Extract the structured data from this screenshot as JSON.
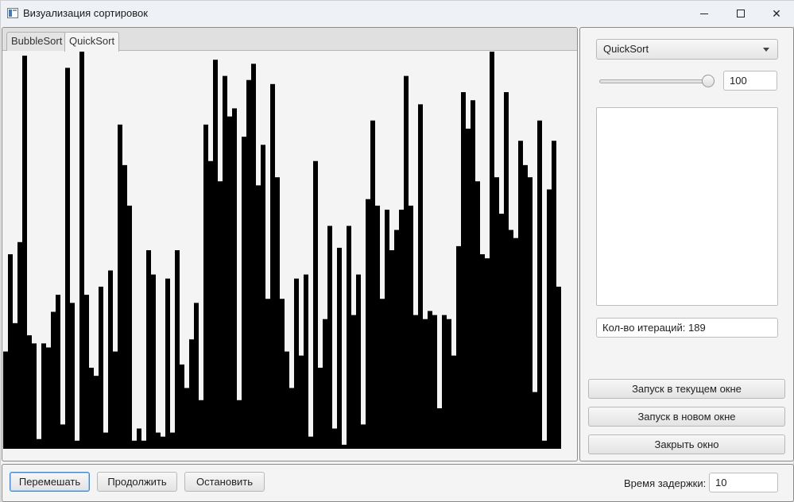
{
  "window": {
    "title": "Визуализация сортировок",
    "controls": {
      "minimize": "minimize-icon",
      "maximize": "maximize-icon",
      "close": "close-icon"
    }
  },
  "tabs": [
    {
      "label": "BubbleSort",
      "active": false
    },
    {
      "label": "QuickSort",
      "active": true
    }
  ],
  "chart_data": {
    "type": "bar",
    "bar_color": "#000000",
    "values": [
      120,
      240,
      155,
      255,
      485,
      140,
      130,
      12,
      130,
      125,
      169,
      190,
      30,
      470,
      180,
      10,
      490,
      190,
      100,
      90,
      200,
      20,
      220,
      120,
      400,
      350,
      300,
      10,
      25,
      10,
      245,
      215,
      20,
      15,
      210,
      20,
      245,
      104,
      75,
      135,
      180,
      60,
      400,
      355,
      480,
      330,
      460,
      410,
      420,
      60,
      385,
      455,
      475,
      325,
      375,
      185,
      450,
      335,
      185,
      120,
      75,
      210,
      115,
      215,
      15,
      355,
      100,
      160,
      275,
      25,
      248,
      5,
      275,
      165,
      215,
      30,
      308,
      405,
      300,
      185,
      295,
      245,
      270,
      295,
      460,
      300,
      165,
      425,
      160,
      170,
      165,
      50,
      165,
      160,
      115,
      250,
      440,
      395,
      430,
      330,
      240,
      235,
      490,
      335,
      290,
      440,
      270,
      260,
      380,
      350,
      335,
      70,
      405,
      10,
      320,
      380,
      200
    ]
  },
  "sidebar": {
    "algorithm_select": "QuickSort",
    "slider_value": "100",
    "iterations_label": "Кол-во итераций: 189",
    "run_current_button": "Запуск в текущем окне",
    "run_new_button": "Запуск в новом окне",
    "close_button": "Закрыть окно"
  },
  "bottom": {
    "shuffle_button": "Перемешать",
    "continue_button": "Продолжить",
    "stop_button": "Остановить",
    "delay_label": "Время задержки:",
    "delay_value": "10"
  }
}
